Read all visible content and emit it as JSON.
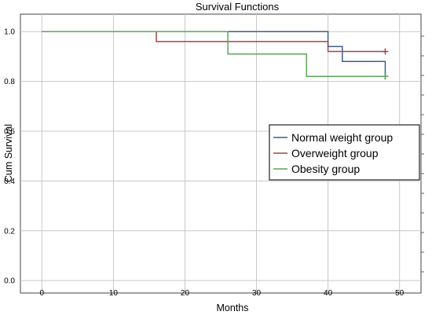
{
  "chart_data": {
    "type": "line",
    "title": "Survival Functions",
    "xlabel": "Months",
    "ylabel": "Cum Survival",
    "xlim": [
      -3,
      53
    ],
    "ylim": [
      -0.05,
      1.07
    ],
    "xticks": [
      0,
      10,
      20,
      30,
      40,
      50
    ],
    "yticks": [
      0.0,
      0.2,
      0.4,
      0.6,
      0.8,
      1.0
    ],
    "xtick_labels": [
      "0",
      "10",
      "20",
      "30",
      "40",
      "50"
    ],
    "ytick_labels": [
      "0.0",
      "0.2",
      "0.4",
      "0.6",
      "0.8",
      "1.0"
    ],
    "grid": true,
    "legend_position": "right",
    "step": true,
    "series": [
      {
        "name": "Normal weight group",
        "color": "#3c5f87",
        "x": [
          0,
          40,
          42,
          48
        ],
        "y": [
          1.0,
          0.94,
          0.88,
          0.82
        ],
        "censored": [
          [
            48,
            0.82
          ]
        ]
      },
      {
        "name": "Overweight group",
        "color": "#a0454c",
        "x": [
          0,
          16,
          40,
          48
        ],
        "y": [
          1.0,
          0.96,
          0.92,
          0.92
        ],
        "censored": [
          [
            48,
            0.92
          ]
        ]
      },
      {
        "name": "Obesity group",
        "color": "#5ca65a",
        "x": [
          0,
          26,
          37,
          48
        ],
        "y": [
          1.0,
          0.91,
          0.82,
          0.82
        ],
        "censored": [
          [
            48,
            0.82
          ]
        ]
      }
    ]
  }
}
